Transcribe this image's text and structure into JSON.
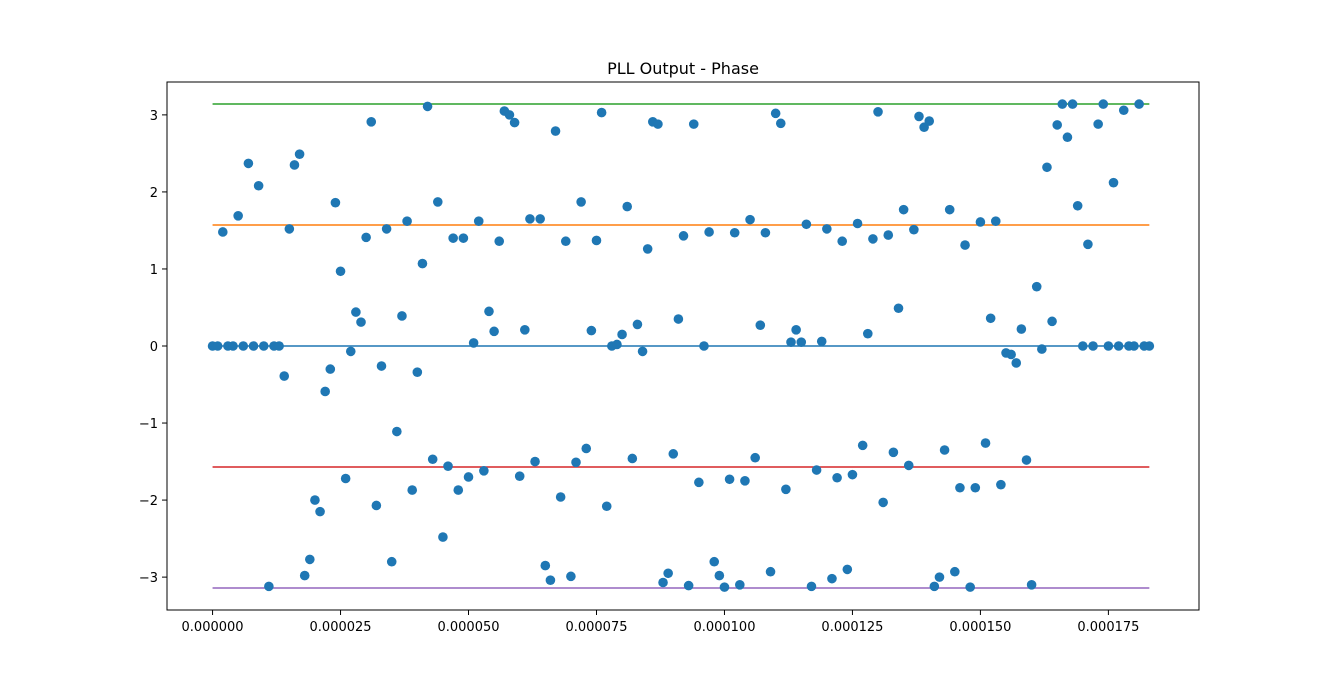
{
  "chart_data": {
    "type": "scatter",
    "title": "PLL Output - Phase",
    "xlabel": "",
    "ylabel": "",
    "xlim": [
      -8.9e-06,
      0.0001927
    ],
    "ylim": [
      -3.4268,
      3.4268
    ],
    "x_ticks": [
      0.0,
      2.5e-05,
      5e-05,
      7.5e-05,
      0.0001,
      0.000125,
      0.00015,
      0.000175
    ],
    "x_tick_labels": [
      "0.000000",
      "0.000025",
      "0.000050",
      "0.000075",
      "0.000100",
      "0.000125",
      "0.000150",
      "0.000175"
    ],
    "y_ticks": [
      -3,
      -2,
      -1,
      0,
      1,
      2,
      3
    ],
    "y_tick_labels": [
      "−3",
      "−2",
      "−1",
      "0",
      "1",
      "2",
      "3"
    ],
    "grid": false,
    "scatter_color": "#1f77b4",
    "reference_lines": [
      {
        "value": 0.0,
        "color": "#1f77b4"
      },
      {
        "value": 1.5708,
        "color": "#ff7f0e"
      },
      {
        "value": 3.1416,
        "color": "#2ca02c"
      },
      {
        "value": -1.5708,
        "color": "#d62728"
      },
      {
        "value": -3.1416,
        "color": "#9467bd"
      }
    ],
    "line_x_range": [
      0.0,
      0.000183
    ],
    "points": [
      [
        0.0,
        0.0
      ],
      [
        1e-06,
        0.0
      ],
      [
        2e-06,
        1.48
      ],
      [
        3e-06,
        0.0
      ],
      [
        4e-06,
        0.0
      ],
      [
        5e-06,
        1.69
      ],
      [
        6e-06,
        0.0
      ],
      [
        7e-06,
        2.37
      ],
      [
        8e-06,
        0.0
      ],
      [
        9e-06,
        2.08
      ],
      [
        1e-05,
        0.0
      ],
      [
        1.1e-05,
        -3.12
      ],
      [
        1.2e-05,
        0.0
      ],
      [
        1.3e-05,
        0.0
      ],
      [
        1.4e-05,
        -0.39
      ],
      [
        1.5e-05,
        1.52
      ],
      [
        1.6e-05,
        2.35
      ],
      [
        1.7e-05,
        2.49
      ],
      [
        1.8e-05,
        -2.98
      ],
      [
        1.9e-05,
        -2.77
      ],
      [
        2e-05,
        -2.0
      ],
      [
        2.1e-05,
        -2.15
      ],
      [
        2.2e-05,
        -0.59
      ],
      [
        2.3e-05,
        -0.3
      ],
      [
        2.4e-05,
        1.86
      ],
      [
        2.5e-05,
        0.97
      ],
      [
        2.6e-05,
        -1.72
      ],
      [
        2.7e-05,
        -0.07
      ],
      [
        2.8e-05,
        0.44
      ],
      [
        2.9e-05,
        0.31
      ],
      [
        3e-05,
        1.41
      ],
      [
        3.1e-05,
        2.91
      ],
      [
        3.2e-05,
        -2.07
      ],
      [
        3.3e-05,
        -0.26
      ],
      [
        3.4e-05,
        1.52
      ],
      [
        3.5e-05,
        -2.8
      ],
      [
        3.6e-05,
        -1.11
      ],
      [
        3.7e-05,
        0.39
      ],
      [
        3.8e-05,
        1.62
      ],
      [
        3.9e-05,
        -1.87
      ],
      [
        4e-05,
        -0.34
      ],
      [
        4.1e-05,
        1.07
      ],
      [
        4.2e-05,
        3.11
      ],
      [
        4.3e-05,
        -1.47
      ],
      [
        4.4e-05,
        1.87
      ],
      [
        4.5e-05,
        -2.48
      ],
      [
        4.6e-05,
        -1.56
      ],
      [
        4.7e-05,
        1.4
      ],
      [
        4.8e-05,
        -1.87
      ],
      [
        4.9e-05,
        1.4
      ],
      [
        5e-05,
        -1.7
      ],
      [
        5.1e-05,
        0.04
      ],
      [
        5.2e-05,
        1.62
      ],
      [
        5.3e-05,
        -1.62
      ],
      [
        5.4e-05,
        0.45
      ],
      [
        5.5e-05,
        0.19
      ],
      [
        5.6e-05,
        1.36
      ],
      [
        5.7e-05,
        3.05
      ],
      [
        5.8e-05,
        3.0
      ],
      [
        5.9e-05,
        2.9
      ],
      [
        6e-05,
        -1.69
      ],
      [
        6.1e-05,
        0.21
      ],
      [
        6.2e-05,
        1.65
      ],
      [
        6.3e-05,
        -1.5
      ],
      [
        6.4e-05,
        1.65
      ],
      [
        6.5e-05,
        -2.85
      ],
      [
        6.6e-05,
        -3.04
      ],
      [
        6.7e-05,
        2.79
      ],
      [
        6.8e-05,
        -1.96
      ],
      [
        6.9e-05,
        1.36
      ],
      [
        7e-05,
        -2.99
      ],
      [
        7.1e-05,
        -1.51
      ],
      [
        7.2e-05,
        1.87
      ],
      [
        7.3e-05,
        -1.33
      ],
      [
        7.4e-05,
        0.2
      ],
      [
        7.5e-05,
        1.37
      ],
      [
        7.6e-05,
        3.03
      ],
      [
        7.7e-05,
        -2.08
      ],
      [
        7.8e-05,
        0.0
      ],
      [
        7.9e-05,
        0.02
      ],
      [
        8e-05,
        0.15
      ],
      [
        8.1e-05,
        1.81
      ],
      [
        8.2e-05,
        -1.46
      ],
      [
        8.3e-05,
        0.28
      ],
      [
        8.4e-05,
        -0.07
      ],
      [
        8.5e-05,
        1.26
      ],
      [
        8.6e-05,
        2.91
      ],
      [
        8.7e-05,
        2.88
      ],
      [
        8.8e-05,
        -3.07
      ],
      [
        8.9e-05,
        -2.95
      ],
      [
        9e-05,
        -1.4
      ],
      [
        9.1e-05,
        0.35
      ],
      [
        9.2e-05,
        1.43
      ],
      [
        9.3e-05,
        -3.11
      ],
      [
        9.4e-05,
        2.88
      ],
      [
        9.5e-05,
        -1.77
      ],
      [
        9.6e-05,
        0.0
      ],
      [
        9.7e-05,
        1.48
      ],
      [
        9.8e-05,
        -2.8
      ],
      [
        9.9e-05,
        -2.98
      ],
      [
        0.0001,
        -3.13
      ],
      [
        0.000101,
        -1.73
      ],
      [
        0.000102,
        1.47
      ],
      [
        0.000103,
        -3.1
      ],
      [
        0.000104,
        -1.75
      ],
      [
        0.000105,
        1.64
      ],
      [
        0.000106,
        -1.45
      ],
      [
        0.000107,
        0.27
      ],
      [
        0.000108,
        1.47
      ],
      [
        0.000109,
        -2.93
      ],
      [
        0.00011,
        3.02
      ],
      [
        0.000111,
        2.89
      ],
      [
        0.000112,
        -1.86
      ],
      [
        0.000113,
        0.05
      ],
      [
        0.000114,
        0.21
      ],
      [
        0.000115,
        0.05
      ],
      [
        0.000116,
        1.58
      ],
      [
        0.000117,
        -3.12
      ],
      [
        0.000118,
        -1.61
      ],
      [
        0.000119,
        0.06
      ],
      [
        0.00012,
        1.52
      ],
      [
        0.000121,
        -3.02
      ],
      [
        0.000122,
        -1.71
      ],
      [
        0.000123,
        1.36
      ],
      [
        0.000124,
        -2.9
      ],
      [
        0.000125,
        -1.67
      ],
      [
        0.000126,
        1.59
      ],
      [
        0.000127,
        -1.29
      ],
      [
        0.000128,
        0.16
      ],
      [
        0.000129,
        1.39
      ],
      [
        0.00013,
        3.04
      ],
      [
        0.000131,
        -2.03
      ],
      [
        0.000132,
        1.44
      ],
      [
        0.000133,
        -1.38
      ],
      [
        0.000134,
        0.49
      ],
      [
        0.000135,
        1.77
      ],
      [
        0.000136,
        -1.55
      ],
      [
        0.000137,
        1.51
      ],
      [
        0.000138,
        2.98
      ],
      [
        0.000139,
        2.84
      ],
      [
        0.00014,
        2.92
      ],
      [
        0.000141,
        -3.12
      ],
      [
        0.000142,
        -3.0
      ],
      [
        0.000143,
        -1.35
      ],
      [
        0.000144,
        1.77
      ],
      [
        0.000145,
        -2.93
      ],
      [
        0.000146,
        -1.84
      ],
      [
        0.000147,
        1.31
      ],
      [
        0.000148,
        -3.13
      ],
      [
        0.000149,
        -1.84
      ],
      [
        0.00015,
        1.61
      ],
      [
        0.000151,
        -1.26
      ],
      [
        0.000152,
        0.36
      ],
      [
        0.000153,
        1.62
      ],
      [
        0.000154,
        -1.8
      ],
      [
        0.000155,
        -0.09
      ],
      [
        0.000156,
        -0.11
      ],
      [
        0.000157,
        -0.22
      ],
      [
        0.000158,
        0.22
      ],
      [
        0.000159,
        -1.48
      ],
      [
        0.00016,
        -3.1
      ],
      [
        0.000161,
        0.77
      ],
      [
        0.000162,
        -0.04
      ],
      [
        0.000163,
        2.32
      ],
      [
        0.000164,
        0.32
      ],
      [
        0.000165,
        2.87
      ],
      [
        0.000166,
        3.14
      ],
      [
        0.000167,
        2.71
      ],
      [
        0.000168,
        3.14
      ],
      [
        0.000169,
        1.82
      ],
      [
        0.00017,
        0.0
      ],
      [
        0.000171,
        1.32
      ],
      [
        0.000172,
        0.0
      ],
      [
        0.000173,
        2.88
      ],
      [
        0.000174,
        3.14
      ],
      [
        0.000175,
        0.0
      ],
      [
        0.000176,
        2.12
      ],
      [
        0.000177,
        0.0
      ],
      [
        0.000178,
        3.06
      ],
      [
        0.000179,
        0.0
      ],
      [
        0.00018,
        0.0
      ],
      [
        0.000181,
        3.14
      ],
      [
        0.000182,
        0.0
      ],
      [
        0.000183,
        0.0
      ]
    ]
  }
}
